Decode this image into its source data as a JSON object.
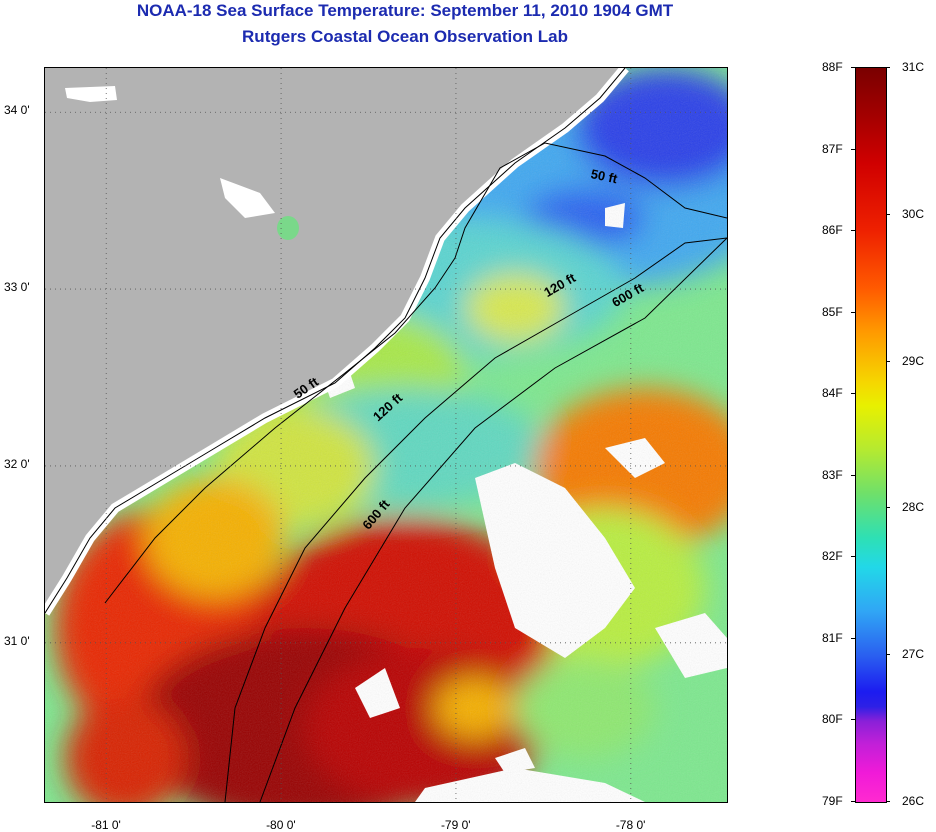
{
  "title": "NOAA-18 Sea Surface Temperature:  September 11, 2010 1904 GMT",
  "subtitle": "Rutgers Coastal Ocean Observation Lab",
  "map": {
    "lon_range": [
      -81.35,
      -77.45
    ],
    "lat_range": [
      30.1,
      34.25
    ],
    "lon_ticks": [
      {
        "value": -81,
        "label": "-81 0'"
      },
      {
        "value": -80,
        "label": "-80 0'"
      },
      {
        "value": -79,
        "label": "-79 0'"
      },
      {
        "value": -78,
        "label": "-78 0'"
      }
    ],
    "lat_ticks": [
      {
        "value": 34,
        "label": "34 0'"
      },
      {
        "value": 33,
        "label": "33 0'"
      },
      {
        "value": 32,
        "label": "32 0'"
      },
      {
        "value": 31,
        "label": "31 0'"
      }
    ],
    "land_color": "#b3b3b3",
    "cloud_color": "#ffffff",
    "contours": [
      {
        "label": "50 ft"
      },
      {
        "label": "50 ft"
      },
      {
        "label": "120 ft"
      },
      {
        "label": "120 ft"
      },
      {
        "label": "600 ft"
      },
      {
        "label": "600 ft"
      }
    ]
  },
  "colorbar": {
    "fahrenheit": [
      "88F",
      "87F",
      "86F",
      "85F",
      "84F",
      "83F",
      "82F",
      "81F",
      "80F",
      "79F"
    ],
    "celsius": [
      "31C",
      "30C",
      "29C",
      "28C",
      "27C",
      "26C"
    ],
    "colors": {
      "max": "#7a0000",
      "warm": "#ee2000",
      "mid": "#f5d800",
      "cool": "#22d8e8",
      "cold": "#1c1cf0",
      "min": "#ff2ad0"
    }
  }
}
